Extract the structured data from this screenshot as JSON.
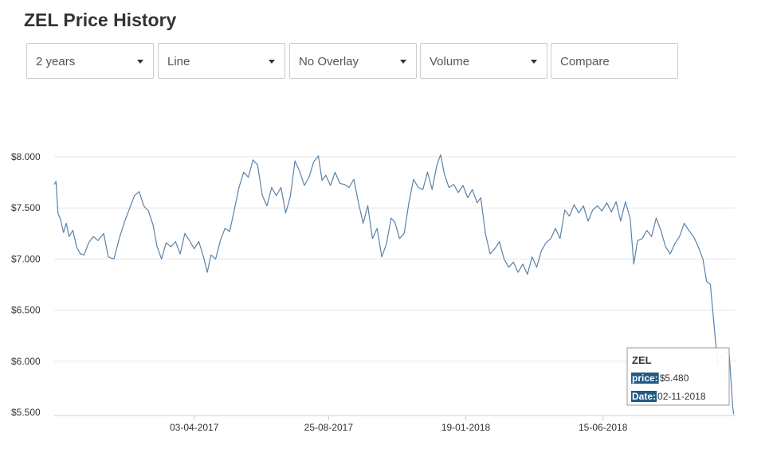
{
  "page": {
    "title": "ZEL Price History"
  },
  "controls": {
    "range": "2 years",
    "type": "Line",
    "overlay": "No Overlay",
    "indicator": "Volume",
    "compare_placeholder": "Compare"
  },
  "colors": {
    "line": "#5b82a8",
    "grid": "#e6e6e6",
    "tag_bg": "#1f5a86"
  },
  "icons": {
    "dropdown": "chevron-down-icon"
  },
  "chart_data": {
    "type": "line",
    "title": "",
    "xlabel": "",
    "ylabel": "",
    "ylim": [
      5.5,
      8.0
    ],
    "yticks": [
      {
        "value": 5.5,
        "label": "$5.500"
      },
      {
        "value": 6.0,
        "label": "$6.000"
      },
      {
        "value": 6.5,
        "label": "$6.500"
      },
      {
        "value": 7.0,
        "label": "$7.000"
      },
      {
        "value": 7.5,
        "label": "$7.500"
      },
      {
        "value": 8.0,
        "label": "$8.000"
      }
    ],
    "xlim": [
      "2016-11-04",
      "2018-11-04"
    ],
    "xticks": [
      {
        "date": "2017-04-03",
        "label": "03-04-2017"
      },
      {
        "date": "2017-08-25",
        "label": "25-08-2017"
      },
      {
        "date": "2018-01-19",
        "label": "19-01-2018"
      },
      {
        "date": "2018-06-15",
        "label": "15-06-2018"
      }
    ],
    "grid": true,
    "series": [
      {
        "values": [
          [
            "2016-11-04",
            7.73
          ],
          [
            "2016-11-06",
            7.76
          ],
          [
            "2016-11-08",
            7.45
          ],
          [
            "2016-11-11",
            7.38
          ],
          [
            "2016-11-14",
            7.26
          ],
          [
            "2016-11-17",
            7.35
          ],
          [
            "2016-11-20",
            7.22
          ],
          [
            "2016-11-24",
            7.28
          ],
          [
            "2016-11-28",
            7.12
          ],
          [
            "2016-12-02",
            7.05
          ],
          [
            "2016-12-06",
            7.04
          ],
          [
            "2016-12-11",
            7.16
          ],
          [
            "2016-12-16",
            7.22
          ],
          [
            "2016-12-21",
            7.18
          ],
          [
            "2016-12-27",
            7.25
          ],
          [
            "2017-01-01",
            7.02
          ],
          [
            "2017-01-07",
            7.0
          ],
          [
            "2017-01-13",
            7.21
          ],
          [
            "2017-01-19",
            7.38
          ],
          [
            "2017-01-24",
            7.5
          ],
          [
            "2017-01-29",
            7.62
          ],
          [
            "2017-02-03",
            7.66
          ],
          [
            "2017-02-08",
            7.52
          ],
          [
            "2017-02-13",
            7.47
          ],
          [
            "2017-02-18",
            7.33
          ],
          [
            "2017-02-22",
            7.13
          ],
          [
            "2017-02-27",
            7.0
          ],
          [
            "2017-03-04",
            7.16
          ],
          [
            "2017-03-09",
            7.12
          ],
          [
            "2017-03-14",
            7.17
          ],
          [
            "2017-03-19",
            7.05
          ],
          [
            "2017-03-24",
            7.25
          ],
          [
            "2017-03-29",
            7.18
          ],
          [
            "2017-04-03",
            7.1
          ],
          [
            "2017-04-08",
            7.17
          ],
          [
            "2017-04-13",
            7.02
          ],
          [
            "2017-04-17",
            6.87
          ],
          [
            "2017-04-21",
            7.04
          ],
          [
            "2017-04-26",
            7.0
          ],
          [
            "2017-05-01",
            7.18
          ],
          [
            "2017-05-06",
            7.3
          ],
          [
            "2017-05-11",
            7.27
          ],
          [
            "2017-05-16",
            7.48
          ],
          [
            "2017-05-21",
            7.7
          ],
          [
            "2017-05-26",
            7.85
          ],
          [
            "2017-05-31",
            7.8
          ],
          [
            "2017-06-05",
            7.97
          ],
          [
            "2017-06-10",
            7.92
          ],
          [
            "2017-06-15",
            7.62
          ],
          [
            "2017-06-20",
            7.52
          ],
          [
            "2017-06-25",
            7.7
          ],
          [
            "2017-06-30",
            7.62
          ],
          [
            "2017-07-05",
            7.7
          ],
          [
            "2017-07-10",
            7.45
          ],
          [
            "2017-07-15",
            7.61
          ],
          [
            "2017-07-20",
            7.96
          ],
          [
            "2017-07-25",
            7.86
          ],
          [
            "2017-07-30",
            7.72
          ],
          [
            "2017-08-04",
            7.8
          ],
          [
            "2017-08-09",
            7.95
          ],
          [
            "2017-08-14",
            8.01
          ],
          [
            "2017-08-18",
            7.77
          ],
          [
            "2017-08-22",
            7.82
          ],
          [
            "2017-08-27",
            7.72
          ],
          [
            "2017-09-01",
            7.85
          ],
          [
            "2017-09-06",
            7.74
          ],
          [
            "2017-09-11",
            7.73
          ],
          [
            "2017-09-16",
            7.7
          ],
          [
            "2017-09-21",
            7.78
          ],
          [
            "2017-09-26",
            7.55
          ],
          [
            "2017-10-01",
            7.35
          ],
          [
            "2017-10-06",
            7.52
          ],
          [
            "2017-10-11",
            7.2
          ],
          [
            "2017-10-16",
            7.3
          ],
          [
            "2017-10-21",
            7.02
          ],
          [
            "2017-10-26",
            7.15
          ],
          [
            "2017-10-31",
            7.4
          ],
          [
            "2017-11-04",
            7.36
          ],
          [
            "2017-11-09",
            7.2
          ],
          [
            "2017-11-14",
            7.25
          ],
          [
            "2017-11-19",
            7.55
          ],
          [
            "2017-11-24",
            7.78
          ],
          [
            "2017-11-29",
            7.7
          ],
          [
            "2017-12-04",
            7.68
          ],
          [
            "2017-12-09",
            7.85
          ],
          [
            "2017-12-14",
            7.68
          ],
          [
            "2017-12-19",
            7.92
          ],
          [
            "2017-12-23",
            8.02
          ],
          [
            "2017-12-27",
            7.83
          ],
          [
            "2018-01-01",
            7.7
          ],
          [
            "2018-01-06",
            7.73
          ],
          [
            "2018-01-11",
            7.65
          ],
          [
            "2018-01-16",
            7.72
          ],
          [
            "2018-01-21",
            7.6
          ],
          [
            "2018-01-26",
            7.68
          ],
          [
            "2018-01-31",
            7.55
          ],
          [
            "2018-02-04",
            7.6
          ],
          [
            "2018-02-09",
            7.25
          ],
          [
            "2018-02-14",
            7.05
          ],
          [
            "2018-02-19",
            7.1
          ],
          [
            "2018-02-24",
            7.17
          ],
          [
            "2018-03-01",
            7.0
          ],
          [
            "2018-03-06",
            6.92
          ],
          [
            "2018-03-11",
            6.97
          ],
          [
            "2018-03-16",
            6.87
          ],
          [
            "2018-03-21",
            6.95
          ],
          [
            "2018-03-26",
            6.85
          ],
          [
            "2018-03-31",
            7.02
          ],
          [
            "2018-04-05",
            6.92
          ],
          [
            "2018-04-10",
            7.08
          ],
          [
            "2018-04-15",
            7.16
          ],
          [
            "2018-04-20",
            7.2
          ],
          [
            "2018-04-25",
            7.3
          ],
          [
            "2018-04-30",
            7.2
          ],
          [
            "2018-05-05",
            7.48
          ],
          [
            "2018-05-10",
            7.42
          ],
          [
            "2018-05-15",
            7.53
          ],
          [
            "2018-05-20",
            7.45
          ],
          [
            "2018-05-25",
            7.52
          ],
          [
            "2018-05-30",
            7.37
          ],
          [
            "2018-06-04",
            7.48
          ],
          [
            "2018-06-09",
            7.52
          ],
          [
            "2018-06-14",
            7.47
          ],
          [
            "2018-06-19",
            7.55
          ],
          [
            "2018-06-24",
            7.46
          ],
          [
            "2018-06-29",
            7.56
          ],
          [
            "2018-07-04",
            7.37
          ],
          [
            "2018-07-09",
            7.56
          ],
          [
            "2018-07-14",
            7.4
          ],
          [
            "2018-07-18",
            6.95
          ],
          [
            "2018-07-22",
            7.18
          ],
          [
            "2018-07-27",
            7.2
          ],
          [
            "2018-08-01",
            7.28
          ],
          [
            "2018-08-06",
            7.22
          ],
          [
            "2018-08-11",
            7.4
          ],
          [
            "2018-08-16",
            7.28
          ],
          [
            "2018-08-21",
            7.12
          ],
          [
            "2018-08-26",
            7.05
          ],
          [
            "2018-08-31",
            7.15
          ],
          [
            "2018-09-05",
            7.22
          ],
          [
            "2018-09-10",
            7.35
          ],
          [
            "2018-09-15",
            7.28
          ],
          [
            "2018-09-20",
            7.22
          ],
          [
            "2018-09-25",
            7.12
          ],
          [
            "2018-09-30",
            7.0
          ],
          [
            "2018-10-04",
            6.78
          ],
          [
            "2018-10-08",
            6.75
          ],
          [
            "2018-10-12",
            6.35
          ],
          [
            "2018-10-16",
            5.95
          ],
          [
            "2018-10-20",
            6.05
          ],
          [
            "2018-10-24",
            6.07
          ],
          [
            "2018-10-28",
            6.1
          ],
          [
            "2018-11-01",
            5.55
          ],
          [
            "2018-11-02",
            5.48
          ]
        ]
      }
    ],
    "tooltip": {
      "title": "ZEL",
      "price_label": "price:",
      "price_value": "$5.480",
      "date_label": "Date:",
      "date_value": "02-11-2018"
    }
  }
}
